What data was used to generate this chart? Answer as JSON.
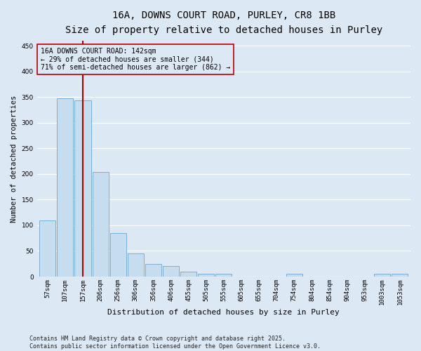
{
  "title_line1": "16A, DOWNS COURT ROAD, PURLEY, CR8 1BB",
  "title_line2": "Size of property relative to detached houses in Purley",
  "xlabel": "Distribution of detached houses by size in Purley",
  "ylabel": "Number of detached properties",
  "categories": [
    "57sqm",
    "107sqm",
    "157sqm",
    "206sqm",
    "256sqm",
    "306sqm",
    "356sqm",
    "406sqm",
    "455sqm",
    "505sqm",
    "555sqm",
    "605sqm",
    "655sqm",
    "704sqm",
    "754sqm",
    "804sqm",
    "854sqm",
    "904sqm",
    "953sqm",
    "1003sqm",
    "1053sqm"
  ],
  "values": [
    110,
    348,
    344,
    204,
    85,
    45,
    24,
    20,
    10,
    6,
    5,
    0,
    0,
    0,
    5,
    0,
    0,
    0,
    0,
    5,
    6
  ],
  "bar_color": "#c6ddf0",
  "bar_edge_color": "#7aafd4",
  "bar_edge_width": 0.7,
  "vline_x": 2,
  "vline_color": "#aa0000",
  "annotation_box_text": "16A DOWNS COURT ROAD: 142sqm\n← 29% of detached houses are smaller (344)\n71% of semi-detached houses are larger (862) →",
  "annotation_fontsize": 7,
  "background_color": "#dde8f5",
  "grid_color": "#ffffff",
  "title_fontsize": 10,
  "subtitle_fontsize": 9,
  "xlabel_fontsize": 8,
  "ylabel_fontsize": 7.5,
  "tick_fontsize": 6.5,
  "footer_text": "Contains HM Land Registry data © Crown copyright and database right 2025.\nContains public sector information licensed under the Open Government Licence v3.0.",
  "ylim": [
    0,
    460
  ],
  "yticks": [
    0,
    50,
    100,
    150,
    200,
    250,
    300,
    350,
    400,
    450
  ]
}
